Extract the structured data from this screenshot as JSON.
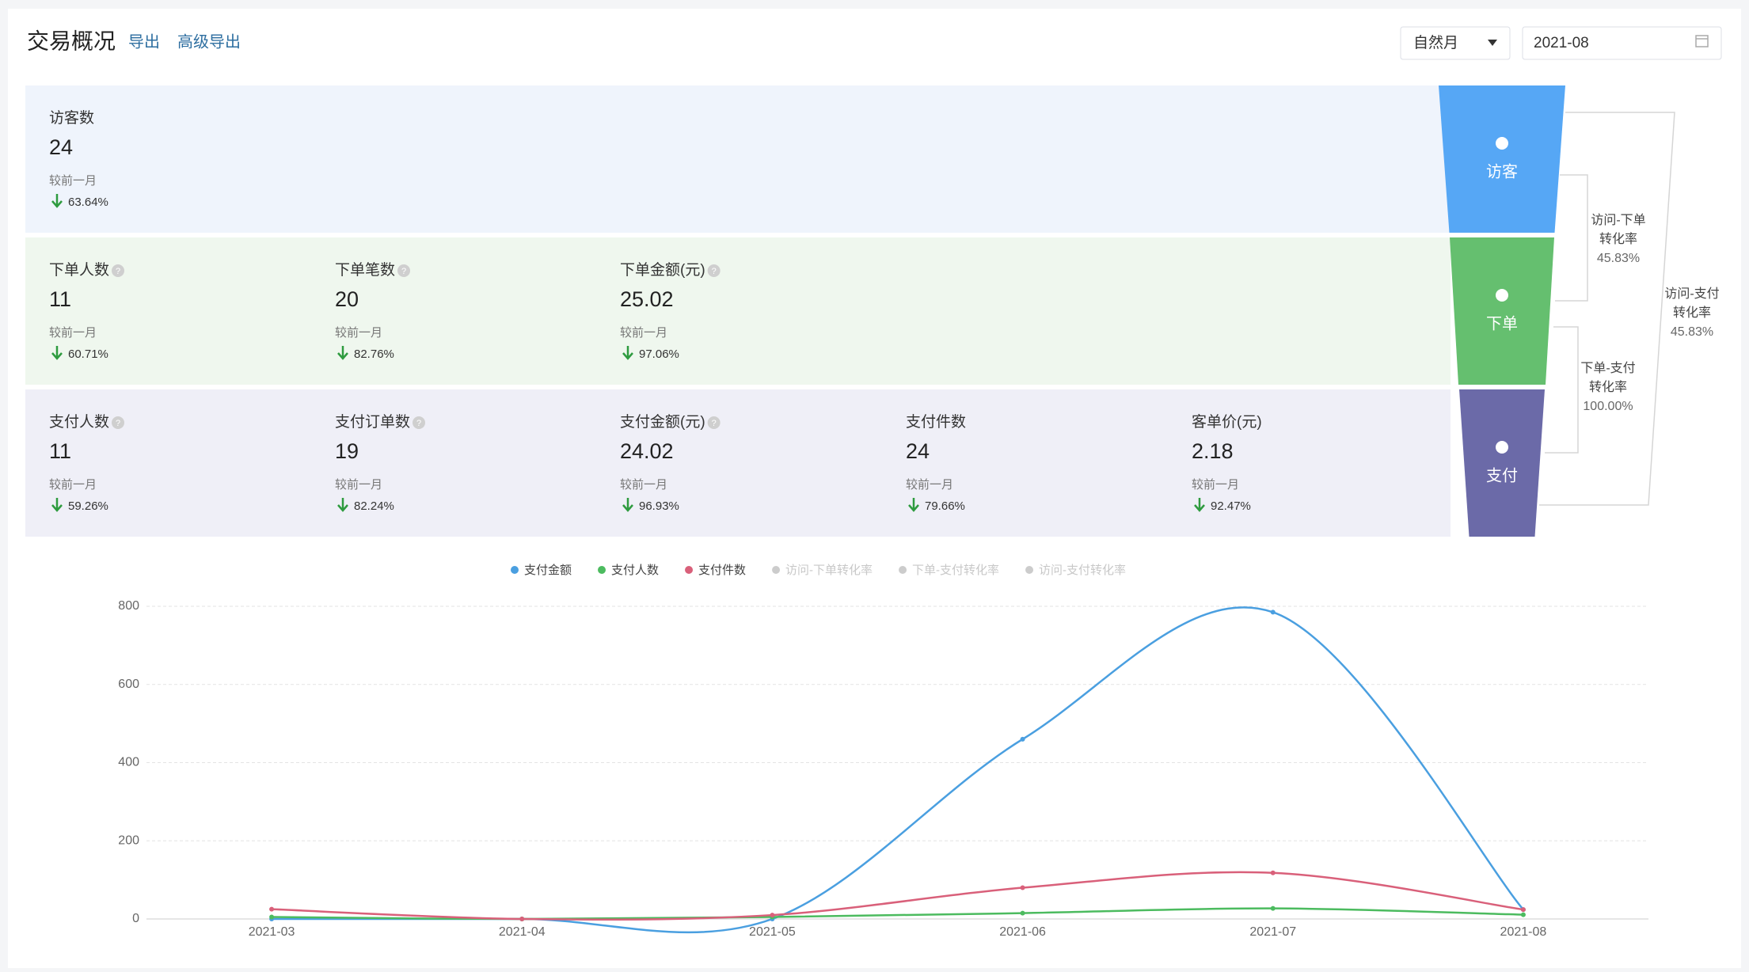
{
  "header": {
    "title": "交易概况",
    "links": [
      "导出",
      "高级导出"
    ],
    "period_select": "自然月",
    "date": "2021-08"
  },
  "metric_rows": [
    {
      "color": "#eff4fc",
      "items": [
        {
          "label": "访客数",
          "value": 24,
          "compare_label": "较前一月",
          "change": "63.64%",
          "help": false
        }
      ]
    },
    {
      "color": "#eff7ee",
      "items": [
        {
          "label": "下单人数",
          "value": 11,
          "compare_label": "较前一月",
          "change": "60.71%",
          "help": true
        },
        {
          "label": "下单笔数",
          "value": 20,
          "compare_label": "较前一月",
          "change": "82.76%",
          "help": true
        },
        {
          "label": "下单金额(元)",
          "value": 25.02,
          "compare_label": "较前一月",
          "change": "97.06%",
          "help": true
        }
      ]
    },
    {
      "color": "#efeff7",
      "items": [
        {
          "label": "支付人数",
          "value": 11,
          "compare_label": "较前一月",
          "change": "59.26%",
          "help": true
        },
        {
          "label": "支付订单数",
          "value": 19,
          "compare_label": "较前一月",
          "change": "82.24%",
          "help": true
        },
        {
          "label": "支付金额(元)",
          "value": 24.02,
          "compare_label": "较前一月",
          "change": "96.93%",
          "help": true
        },
        {
          "label": "支付件数",
          "value": 24,
          "compare_label": "较前一月",
          "change": "79.66%",
          "help": false
        },
        {
          "label": "客单价(元)",
          "value": 2.18,
          "compare_label": "较前一月",
          "change": "92.47%",
          "help": false
        }
      ]
    }
  ],
  "funnel": {
    "stages": [
      {
        "label": "访客",
        "color": "#56a7f5"
      },
      {
        "label": "下单",
        "color": "#65bf6f"
      },
      {
        "label": "支付",
        "color": "#6b6aa8"
      }
    ],
    "conversions": [
      {
        "name": "访问-下单",
        "unit": "转化率",
        "rate": "45.83%"
      },
      {
        "name": "下单-支付",
        "unit": "转化率",
        "rate": "100.00%"
      },
      {
        "name": "访问-支付",
        "unit": "转化率",
        "rate": "45.83%"
      }
    ]
  },
  "chart_data": {
    "type": "line",
    "smooth": true,
    "grid": true,
    "categories": [
      "2021-03",
      "2021-04",
      "2021-05",
      "2021-06",
      "2021-07",
      "2021-08"
    ],
    "series": [
      {
        "name": "支付金额",
        "color": "#4a9fe0",
        "values": [
          0,
          0,
          0,
          460,
          785,
          24.02
        ]
      },
      {
        "name": "支付人数",
        "color": "#4cbb5f",
        "values": [
          5,
          0,
          5,
          15,
          27,
          11
        ]
      },
      {
        "name": "支付件数",
        "color": "#d9607a",
        "values": [
          25,
          0,
          10,
          80,
          118,
          24
        ]
      }
    ],
    "inactive_legend": [
      {
        "name": "访问-下单转化率",
        "color": "#cccccc"
      },
      {
        "name": "下单-支付转化率",
        "color": "#cccccc"
      },
      {
        "name": "访问-支付转化率",
        "color": "#cccccc"
      }
    ],
    "ylim": [
      0,
      800
    ],
    "yticks": [
      0,
      200,
      400,
      600,
      800
    ]
  }
}
